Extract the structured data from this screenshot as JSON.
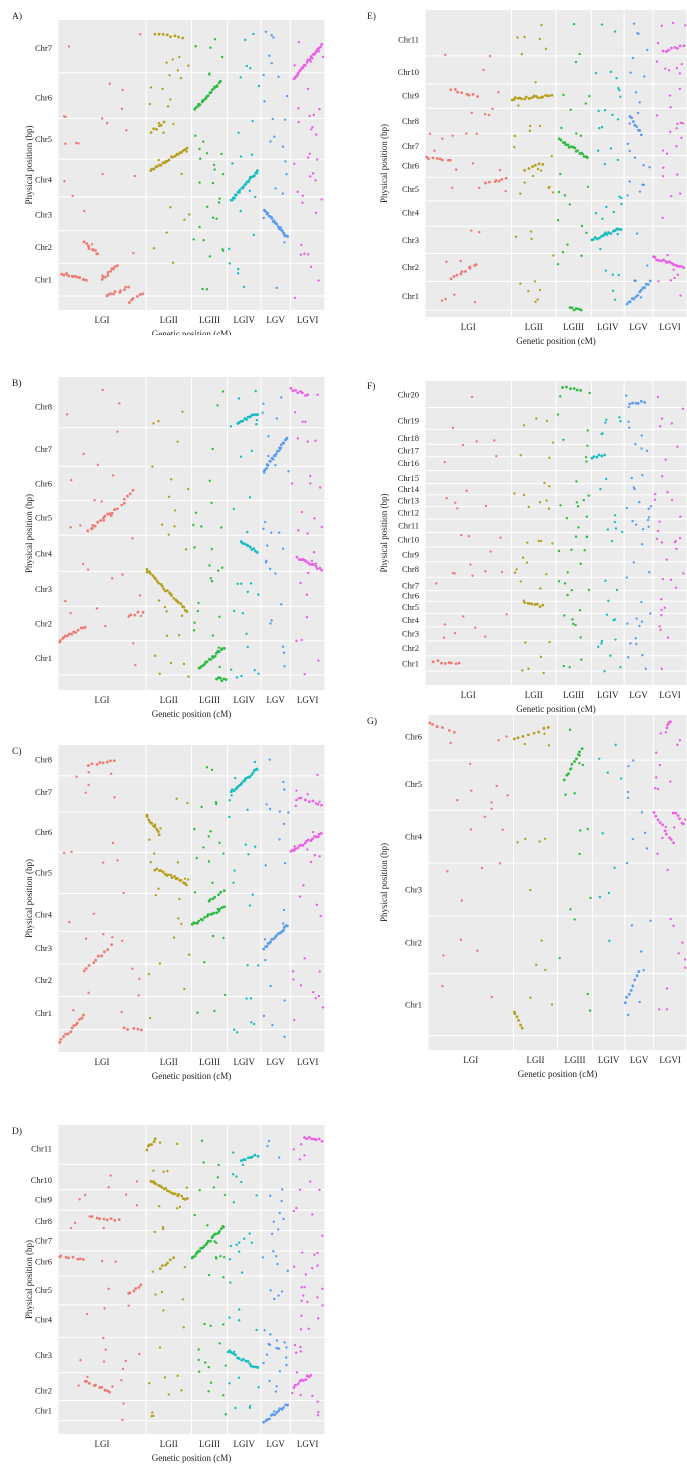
{
  "colors": {
    "LGI": "#f07a74",
    "LGII": "#b5a11f",
    "LGIII": "#2fbb43",
    "LGIV": "#1bbdbf",
    "LGV": "#5c9df0",
    "LGVI": "#ea61e6"
  },
  "chart_data": [
    {
      "id": "A",
      "label": "A)",
      "type": "scatter",
      "xlabel": "Genetic position (cM)",
      "ylabel": "Physical position (bp)",
      "x_groups": [
        "LGI",
        "LGII",
        "LGIII",
        "LGIV",
        "LGV",
        "LGVI"
      ],
      "y_categories": [
        "Chr1",
        "Chr2",
        "Chr3",
        "Chr4",
        "Chr5",
        "Chr6",
        "Chr7"
      ],
      "chr_centers": [
        8.8,
        20.5,
        32.3,
        44.8,
        59.3,
        74.2,
        92.1
      ],
      "ylim": [
        0,
        100
      ],
      "dense": [
        {
          "g": "LGI",
          "x0": 0.05,
          "x1": 0.32,
          "y0": 11,
          "y1": 9,
          "n": 14
        },
        {
          "g": "LGI",
          "x0": 0.3,
          "x1": 0.45,
          "y0": 22,
          "y1": 18,
          "n": 10
        },
        {
          "g": "LGI",
          "x0": 0.5,
          "x1": 0.68,
          "y0": 9,
          "y1": 14,
          "n": 10
        },
        {
          "g": "LGI",
          "x0": 0.55,
          "x1": 0.8,
          "y0": 3,
          "y1": 6,
          "n": 10
        },
        {
          "g": "LGI",
          "x0": 0.8,
          "x1": 0.95,
          "y0": 1,
          "y1": 4,
          "n": 6
        },
        {
          "g": "LGII",
          "x0": 0.1,
          "x1": 0.9,
          "y0": 48,
          "y1": 56,
          "n": 22
        },
        {
          "g": "LGII",
          "x0": 0.2,
          "x1": 0.8,
          "y0": 97,
          "y1": 96,
          "n": 8
        },
        {
          "g": "LGII",
          "x0": 0.1,
          "x1": 0.4,
          "y0": 62,
          "y1": 65,
          "n": 6
        },
        {
          "g": "LGIII",
          "x0": 0.1,
          "x1": 0.8,
          "y0": 70,
          "y1": 80,
          "n": 20
        },
        {
          "g": "LGIV",
          "x0": 0.1,
          "x1": 0.9,
          "y0": 37,
          "y1": 48,
          "n": 24
        },
        {
          "g": "LGV",
          "x0": 0.1,
          "x1": 0.9,
          "y0": 34,
          "y1": 24,
          "n": 24
        },
        {
          "g": "LGVI",
          "x0": 0.1,
          "x1": 0.9,
          "y0": 81,
          "y1": 93,
          "n": 24
        }
      ],
      "sparse_seed": 11,
      "sparse_n": 150
    },
    {
      "id": "B",
      "label": "B)",
      "type": "scatter",
      "xlabel": "Genetic position (cM)",
      "ylabel": "Physical position (bp)",
      "x_groups": [
        "LGI",
        "LGII",
        "LGIII",
        "LGIV",
        "LGV",
        "LGVI"
      ],
      "y_categories": [
        "Chr1",
        "Chr2",
        "Chr3",
        "Chr4",
        "Chr5",
        "Chr6",
        "Chr7",
        "Chr8"
      ],
      "chr_centers": [
        8.6,
        20.0,
        31.5,
        43.4,
        55.4,
        66.6,
        78.1,
        92.3
      ],
      "ylim": [
        0,
        100
      ],
      "dense": [
        {
          "g": "LGI",
          "x0": 0.0,
          "x1": 0.3,
          "y0": 14,
          "y1": 19,
          "n": 14
        },
        {
          "g": "LGI",
          "x0": 0.35,
          "x1": 0.6,
          "y0": 51,
          "y1": 57,
          "n": 14
        },
        {
          "g": "LGI",
          "x0": 0.6,
          "x1": 0.85,
          "y0": 56,
          "y1": 64,
          "n": 10
        },
        {
          "g": "LGI",
          "x0": 0.8,
          "x1": 0.95,
          "y0": 22,
          "y1": 24,
          "n": 5
        },
        {
          "g": "LGII",
          "x0": 0.0,
          "x1": 0.9,
          "y0": 38,
          "y1": 24,
          "n": 26
        },
        {
          "g": "LGIII",
          "x0": 0.2,
          "x1": 0.9,
          "y0": 5,
          "y1": 12,
          "n": 18
        },
        {
          "g": "LGIII",
          "x0": 0.7,
          "x1": 0.95,
          "y0": 2,
          "y1": 1,
          "n": 6
        },
        {
          "g": "LGIV",
          "x0": 0.4,
          "x1": 0.9,
          "y0": 47,
          "y1": 44,
          "n": 10
        },
        {
          "g": "LGIV",
          "x0": 0.3,
          "x1": 0.9,
          "y0": 87,
          "y1": 90,
          "n": 12
        },
        {
          "g": "LGV",
          "x0": 0.1,
          "x1": 0.9,
          "y0": 71,
          "y1": 82,
          "n": 22
        },
        {
          "g": "LGVI",
          "x0": 0.2,
          "x1": 0.9,
          "y0": 42,
          "y1": 38,
          "n": 14
        },
        {
          "g": "LGVI",
          "x0": 0.0,
          "x1": 0.5,
          "y0": 98,
          "y1": 96,
          "n": 8
        }
      ],
      "sparse_seed": 23,
      "sparse_n": 150
    },
    {
      "id": "C",
      "label": "C)",
      "type": "scatter",
      "xlabel": "Genetic position (cM)",
      "ylabel": "Physical position (bp)",
      "x_groups": [
        "LGI",
        "LGII",
        "LGIII",
        "LGIV",
        "LGV",
        "LGVI"
      ],
      "y_categories": [
        "Chr1",
        "Chr2",
        "Chr3",
        "Chr4",
        "Chr5",
        "Chr6",
        "Chr7",
        "Chr8"
      ],
      "chr_centers": [
        11.1,
        22.3,
        33.2,
        44.6,
        58.8,
        72.5,
        86.1,
        97.1
      ],
      "ylim": [
        0,
        100
      ],
      "dense": [
        {
          "g": "LGI",
          "x0": 0.0,
          "x1": 0.3,
          "y0": 1,
          "y1": 10,
          "n": 14
        },
        {
          "g": "LGI",
          "x0": 0.3,
          "x1": 0.6,
          "y0": 25,
          "y1": 34,
          "n": 10
        },
        {
          "g": "LGI",
          "x0": 0.35,
          "x1": 0.65,
          "y0": 95,
          "y1": 97,
          "n": 8
        },
        {
          "g": "LGI",
          "x0": 0.75,
          "x1": 0.95,
          "y0": 6,
          "y1": 5,
          "n": 5
        },
        {
          "g": "LGII",
          "x0": 0.0,
          "x1": 0.3,
          "y0": 78,
          "y1": 72,
          "n": 10
        },
        {
          "g": "LGII",
          "x0": 0.2,
          "x1": 0.9,
          "y0": 60,
          "y1": 55,
          "n": 18
        },
        {
          "g": "LGIII",
          "x0": 0.0,
          "x1": 0.9,
          "y0": 41,
          "y1": 47,
          "n": 18
        },
        {
          "g": "LGIII",
          "x0": 0.5,
          "x1": 0.9,
          "y0": 49,
          "y1": 53,
          "n": 6
        },
        {
          "g": "LGIV",
          "x0": 0.1,
          "x1": 0.9,
          "y0": 86,
          "y1": 94,
          "n": 18
        },
        {
          "g": "LGV",
          "x0": 0.1,
          "x1": 0.9,
          "y0": 33,
          "y1": 41,
          "n": 18
        },
        {
          "g": "LGVI",
          "x0": 0.0,
          "x1": 0.9,
          "y0": 66,
          "y1": 72,
          "n": 18
        },
        {
          "g": "LGVI",
          "x0": 0.3,
          "x1": 0.9,
          "y0": 84,
          "y1": 82,
          "n": 6
        }
      ],
      "sparse_seed": 37,
      "sparse_n": 140
    },
    {
      "id": "D",
      "label": "D)",
      "type": "scatter",
      "xlabel": "Genetic position (cM)",
      "ylabel": "Physical position (bp)",
      "x_groups": [
        "LGI",
        "LGII",
        "LGIII",
        "LGIV",
        "LGV",
        "LGVI"
      ],
      "y_categories": [
        "Chr1",
        "Chr2",
        "Chr3",
        "Chr4",
        "Chr5",
        "Chr6",
        "Chr7",
        "Chr8",
        "Chr9",
        "Chr10",
        "Chr11"
      ],
      "chr_centers": [
        5.8,
        12.6,
        24.5,
        36.5,
        46.4,
        56.0,
        63.2,
        69.8,
        77.0,
        83.6,
        94.1
      ],
      "ylim": [
        0,
        100
      ],
      "dense": [
        {
          "g": "LGI",
          "x0": 0.0,
          "x1": 0.3,
          "y0": 58,
          "y1": 57,
          "n": 8
        },
        {
          "g": "LGI",
          "x0": 0.3,
          "x1": 0.6,
          "y0": 16,
          "y1": 12,
          "n": 10
        },
        {
          "g": "LGI",
          "x0": 0.4,
          "x1": 0.7,
          "y0": 71,
          "y1": 70,
          "n": 8
        },
        {
          "g": "LGI",
          "x0": 0.8,
          "x1": 0.95,
          "y0": 45,
          "y1": 48,
          "n": 6
        },
        {
          "g": "LGII",
          "x0": 0.0,
          "x1": 0.2,
          "y0": 94,
          "y1": 97,
          "n": 6
        },
        {
          "g": "LGII",
          "x0": 0.1,
          "x1": 0.9,
          "y0": 83,
          "y1": 77,
          "n": 20
        },
        {
          "g": "LGII",
          "x0": 0.3,
          "x1": 0.6,
          "y0": 54,
          "y1": 57,
          "n": 6
        },
        {
          "g": "LGIII",
          "x0": 0.0,
          "x1": 0.9,
          "y0": 57,
          "y1": 68,
          "n": 22
        },
        {
          "g": "LGIV",
          "x0": 0.0,
          "x1": 0.9,
          "y0": 26,
          "y1": 20,
          "n": 16
        },
        {
          "g": "LGIV",
          "x0": 0.4,
          "x1": 0.9,
          "y0": 90,
          "y1": 92,
          "n": 8
        },
        {
          "g": "LGV",
          "x0": 0.1,
          "x1": 0.9,
          "y0": 2,
          "y1": 8,
          "n": 14
        },
        {
          "g": "LGVI",
          "x0": 0.1,
          "x1": 0.6,
          "y0": 14,
          "y1": 18,
          "n": 10
        },
        {
          "g": "LGVI",
          "x0": 0.4,
          "x1": 0.9,
          "y0": 98,
          "y1": 97,
          "n": 8
        }
      ],
      "sparse_seed": 53,
      "sparse_n": 200
    },
    {
      "id": "E",
      "label": "E)",
      "type": "scatter",
      "xlabel": "Genetic position (cM)",
      "ylabel": "Physical position (bp)",
      "x_groups": [
        "LGI",
        "LGII",
        "LGIII",
        "LGIV",
        "LGV",
        "LGVI"
      ],
      "y_categories": [
        "Chr1",
        "Chr2",
        "Chr3",
        "Chr4",
        "Chr5",
        "Chr6",
        "Chr7",
        "Chr8",
        "Chr9",
        "Chr10",
        "Chr11"
      ],
      "chr_centers": [
        5.1,
        14.8,
        24.1,
        33.3,
        41.3,
        49.4,
        56.0,
        64.5,
        73.0,
        81.0,
        92.0
      ],
      "ylim": [
        0,
        100
      ],
      "dense": [
        {
          "g": "LGI",
          "x0": 0.0,
          "x1": 0.3,
          "y0": 52,
          "y1": 51,
          "n": 8
        },
        {
          "g": "LGI",
          "x0": 0.3,
          "x1": 0.6,
          "y0": 11,
          "y1": 16,
          "n": 10
        },
        {
          "g": "LGI",
          "x0": 0.3,
          "x1": 0.6,
          "y0": 75,
          "y1": 73,
          "n": 8
        },
        {
          "g": "LGI",
          "x0": 0.7,
          "x1": 0.95,
          "y0": 43,
          "y1": 45,
          "n": 6
        },
        {
          "g": "LGII",
          "x0": 0.0,
          "x1": 0.9,
          "y0": 72,
          "y1": 73,
          "n": 20
        },
        {
          "g": "LGII",
          "x0": 0.3,
          "x1": 0.7,
          "y0": 48,
          "y1": 50,
          "n": 6
        },
        {
          "g": "LGIII",
          "x0": 0.1,
          "x1": 0.9,
          "y0": 58,
          "y1": 52,
          "n": 18
        },
        {
          "g": "LGIII",
          "x0": 0.4,
          "x1": 0.7,
          "y0": 1,
          "y1": 0,
          "n": 6
        },
        {
          "g": "LGIV",
          "x0": 0.0,
          "x1": 0.9,
          "y0": 24,
          "y1": 28,
          "n": 16
        },
        {
          "g": "LGV",
          "x0": 0.1,
          "x1": 0.9,
          "y0": 2,
          "y1": 10,
          "n": 14
        },
        {
          "g": "LGV",
          "x0": 0.2,
          "x1": 0.6,
          "y0": 66,
          "y1": 60,
          "n": 8
        },
        {
          "g": "LGVI",
          "x0": 0.0,
          "x1": 0.9,
          "y0": 18,
          "y1": 15,
          "n": 16
        },
        {
          "g": "LGVI",
          "x0": 0.3,
          "x1": 0.9,
          "y0": 88,
          "y1": 90,
          "n": 8
        }
      ],
      "sparse_seed": 71,
      "sparse_n": 180
    },
    {
      "id": "F",
      "label": "F)",
      "type": "scatter",
      "xlabel": "Genetic position (cM)",
      "ylabel": "Physical position (bp)",
      "x_groups": [
        "LGI",
        "LGII",
        "LGIII",
        "LGIV",
        "LGV",
        "LGVI"
      ],
      "y_categories": [
        "Chr1",
        "Chr2",
        "Chr3",
        "Chr4",
        "Chr5",
        "Chr6",
        "Chr7",
        "Chr8",
        "Chr9",
        "Chr10",
        "Chr11",
        "Chr12",
        "Chr13",
        "Chr14",
        "Chr15",
        "Chr16",
        "Chr17",
        "Chr18",
        "Chr19",
        "Chr20"
      ],
      "chr_centers": [
        5.3,
        10.6,
        15.5,
        20.2,
        24.7,
        28.5,
        32.0,
        37.6,
        42.7,
        47.7,
        52.6,
        57.0,
        61.1,
        65.0,
        68.8,
        74.0,
        78.3,
        82.5,
        88.6,
        97.4
      ],
      "ylim": [
        0,
        100
      ],
      "dense": [
        {
          "g": "LGI",
          "x0": 0.1,
          "x1": 0.4,
          "y0": 6,
          "y1": 5,
          "n": 8
        },
        {
          "g": "LGII",
          "x0": 0.3,
          "x1": 0.7,
          "y0": 26,
          "y1": 25,
          "n": 8
        },
        {
          "g": "LGIII",
          "x0": 0.2,
          "x1": 0.7,
          "y0": 100,
          "y1": 99,
          "n": 6
        },
        {
          "g": "LGIV",
          "x0": 0.0,
          "x1": 0.4,
          "y0": 76,
          "y1": 77,
          "n": 6
        },
        {
          "g": "LGV",
          "x0": 0.2,
          "x1": 0.7,
          "y0": 94,
          "y1": 95,
          "n": 6
        }
      ],
      "sparse_seed": 89,
      "sparse_n": 200
    },
    {
      "id": "G",
      "label": "G)",
      "type": "scatter",
      "xlabel": "Genetic position (cM)",
      "ylabel": "Physical position (bp)",
      "x_groups": [
        "LGI",
        "LGII",
        "LGIII",
        "LGIV",
        "LGV",
        "LGVI"
      ],
      "y_categories": [
        "Chr1",
        "Chr2",
        "Chr3",
        "Chr4",
        "Chr5",
        "Chr6"
      ],
      "chr_centers": [
        12.0,
        31.3,
        47.8,
        64.3,
        80.7,
        95.4
      ],
      "ylim": [
        0,
        100
      ],
      "dense": [
        {
          "g": "LGI",
          "x0": 0.0,
          "x1": 0.3,
          "y0": 100,
          "y1": 97,
          "n": 6
        },
        {
          "g": "LGII",
          "x0": 0.0,
          "x1": 0.2,
          "y0": 10,
          "y1": 5,
          "n": 6
        },
        {
          "g": "LGII",
          "x0": 0.0,
          "x1": 0.8,
          "y0": 95,
          "y1": 98,
          "n": 8
        },
        {
          "g": "LGIII",
          "x0": 0.2,
          "x1": 0.7,
          "y0": 82,
          "y1": 92,
          "n": 10
        },
        {
          "g": "LGV",
          "x0": 0.0,
          "x1": 0.5,
          "y0": 13,
          "y1": 22,
          "n": 8
        },
        {
          "g": "LGVI",
          "x0": 0.0,
          "x1": 0.6,
          "y0": 72,
          "y1": 62,
          "n": 10
        },
        {
          "g": "LGVI",
          "x0": 0.6,
          "x1": 0.9,
          "y0": 72,
          "y1": 68,
          "n": 6
        },
        {
          "g": "LGVI",
          "x0": 0.4,
          "x1": 0.5,
          "y0": 98,
          "y1": 100,
          "n": 4
        }
      ],
      "sparse_seed": 97,
      "sparse_n": 100
    }
  ]
}
